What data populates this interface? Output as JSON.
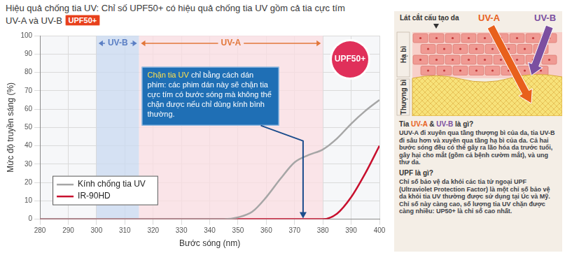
{
  "header": {
    "title": "Hiệu quả chống tia UV: Chỉ số UPF50+ có hiệu quả chống tia UV gồm cả tia cực tím UV-A và UV-B",
    "badge": "UPF50+"
  },
  "chart_data": {
    "type": "line",
    "x_label": "Bước sóng (nm)",
    "y_label": "Mức độ truyền sáng (%)",
    "x": [
      280,
      285,
      290,
      295,
      300,
      305,
      310,
      315,
      320,
      325,
      330,
      335,
      340,
      345,
      350,
      355,
      360,
      365,
      370,
      375,
      380,
      385,
      390,
      395,
      400
    ],
    "series": [
      {
        "name": "Kính chống tia UV",
        "color": "#a6a6a6",
        "values": [
          0,
          0,
          0,
          0,
          0,
          0,
          0,
          0,
          0,
          0,
          0,
          0,
          0,
          0,
          1,
          4,
          12,
          22,
          31,
          35,
          38,
          44,
          52,
          59,
          65
        ]
      },
      {
        "name": "IR-90HD",
        "color": "#c8102e",
        "values": [
          0,
          0,
          0,
          0,
          0,
          0,
          0,
          0,
          0,
          0,
          0,
          0,
          0,
          0,
          0,
          0,
          0,
          0,
          0,
          0,
          0,
          3,
          12,
          25,
          40
        ]
      }
    ],
    "xlim": [
      280,
      400
    ],
    "xticks": [
      280,
      290,
      300,
      310,
      320,
      330,
      340,
      350,
      360,
      370,
      380,
      390,
      400
    ],
    "ylim": [
      0,
      100
    ],
    "yticks": [
      0,
      10,
      20,
      30,
      40,
      50,
      60,
      70,
      80,
      90,
      100
    ],
    "grid": true,
    "legend": "lower left",
    "bands": [
      {
        "label": "UV-B",
        "range": [
          300,
          315
        ],
        "color": "#c9daf0"
      },
      {
        "label": "UV-A",
        "range": [
          315,
          380
        ],
        "color": "#fbdde2"
      }
    ],
    "badge": "UPF50+",
    "annotation": {
      "highlight": "Chặn tia UV",
      "text": "chỉ bằng cách dán phim: các phim dán này sẽ chặn tia cực tím có bước sóng mà không thể chặn được nếu chỉ dùng kính bình thường.",
      "x": 373,
      "y": 0
    }
  },
  "side_panel": {
    "diagram": {
      "title": "Lát cắt cấu tạo da",
      "rays": [
        {
          "label": "UV-A",
          "color": "#e8601c"
        },
        {
          "label": "UV-B",
          "color": "#7b4fa0"
        }
      ],
      "layers": [
        "Hạ bì",
        "Thượng bì"
      ]
    },
    "sections": [
      {
        "heading": "Tia UV-A & UV-B là gì?",
        "body": "UUV-A đi xuyên qua tầng thượng bì của da, tia UV-B đi sâu hơn và xuyên qua tầng hạ bì của da. Cả hai bước sóng đều có thể gây ra lão hóa da trước tuổi, gây hại cho mắt (gồm cả bệnh cườm mắt), và ung thư da."
      },
      {
        "heading": "UPF là gì?",
        "body": "Chỉ số bảo vệ da khỏi các tia tử ngoại UPF (Ultraviolet Protection Factor) là một chỉ số bảo vệ da khỏi tia UV thường được sử dụng tại Úc và Mỹ. Chỉ số này càng cao, số lượng tia UV chặn được càng nhiều: UP50+ là chỉ số cao nhất."
      }
    ]
  }
}
